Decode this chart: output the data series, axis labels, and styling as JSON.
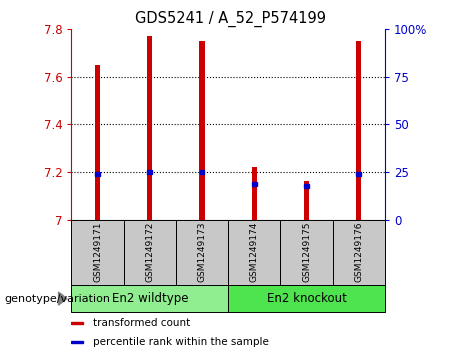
{
  "title": "GDS5241 / A_52_P574199",
  "samples": [
    "GSM1249171",
    "GSM1249172",
    "GSM1249173",
    "GSM1249174",
    "GSM1249175",
    "GSM1249176"
  ],
  "red_values": [
    7.65,
    7.77,
    7.75,
    7.22,
    7.16,
    7.75
  ],
  "blue_values": [
    7.19,
    7.2,
    7.2,
    7.15,
    7.14,
    7.19
  ],
  "y_min": 7.0,
  "y_max": 7.8,
  "y_ticks": [
    7.0,
    7.2,
    7.4,
    7.6,
    7.8
  ],
  "y_tick_labels": [
    "7",
    "7.2",
    "7.4",
    "7.6",
    "7.8"
  ],
  "y2_ticks": [
    0,
    25,
    50,
    75,
    100
  ],
  "y2_tick_labels": [
    "0",
    "25",
    "50",
    "75",
    "100%"
  ],
  "groups": [
    {
      "label": "En2 wildtype",
      "indices": [
        0,
        1,
        2
      ],
      "color": "#90EE90"
    },
    {
      "label": "En2 knockout",
      "indices": [
        3,
        4,
        5
      ],
      "color": "#4EE44E"
    }
  ],
  "group_label_prefix": "genotype/variation",
  "legend": [
    {
      "label": "transformed count",
      "color": "#CC0000"
    },
    {
      "label": "percentile rank within the sample",
      "color": "#0000CC"
    }
  ],
  "bar_color": "#CC0000",
  "blue_color": "#0000CC",
  "plot_bg": "#FFFFFF",
  "tick_area_bg": "#C8C8C8",
  "left_tick_color": "#CC0000",
  "right_tick_color": "#0000CC",
  "bar_width": 0.1
}
